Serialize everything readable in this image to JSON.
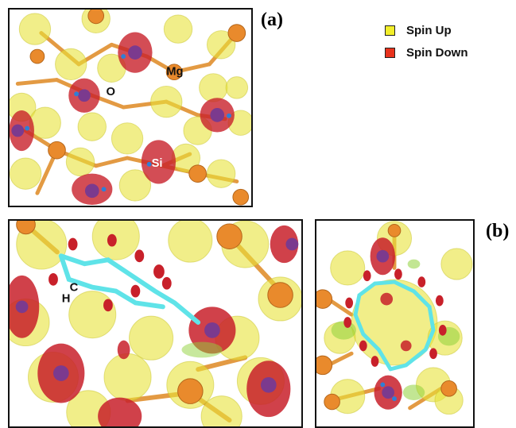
{
  "panel_labels": {
    "a": "(a)",
    "b": "(b)"
  },
  "legend": [
    {
      "label": "Spin Up",
      "color": "#f2ee2a"
    },
    {
      "label": "Spin Down",
      "color": "#e8321c"
    }
  ],
  "atom_labels": {
    "O": "O",
    "Mg": "Mg",
    "Si": "Si",
    "C": "C",
    "H": "H"
  },
  "colors": {
    "spin_up": "#e8e23a",
    "spin_down": "#c8202a",
    "mg_atom": "#e98a2c",
    "si_atom": "#7b3a8e",
    "o_atom": "#2f7fd6",
    "carbon_ring": "#5fe3e8",
    "bond": "#e0902f",
    "green_tint": "#8fd23a"
  }
}
